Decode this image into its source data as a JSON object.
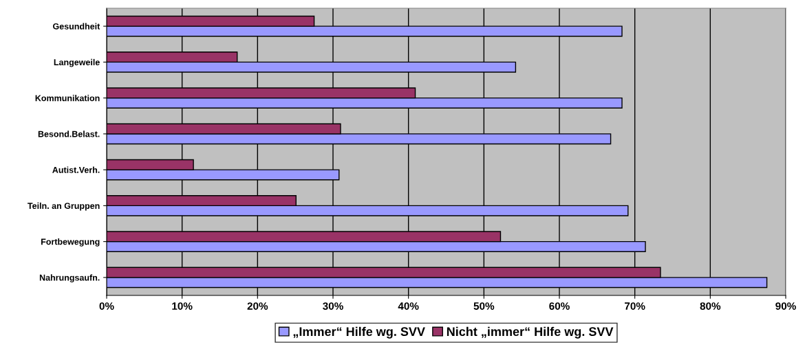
{
  "chart_data": {
    "type": "bar",
    "orientation": "horizontal",
    "categories": [
      "Gesundheit",
      "Langeweile",
      "Kommunikation",
      "Besond.Belast.",
      "Autist.Verh.",
      "Teiln. an Gruppen",
      "Fortbewegung",
      "Nahrungsaufn."
    ],
    "series": [
      {
        "name": "„Immer“ Hilfe wg. SVV",
        "color": "#9999ff",
        "values": [
          68.3,
          54.2,
          68.3,
          66.8,
          30.8,
          69.1,
          71.4,
          87.5
        ]
      },
      {
        "name": "Nicht „immer“ Hilfe wg. SVV",
        "color": "#993366",
        "values": [
          27.5,
          17.3,
          40.9,
          31.0,
          11.5,
          25.1,
          52.2,
          73.4
        ]
      }
    ],
    "xlim": [
      0,
      90
    ],
    "xticks": [
      {
        "value": 0,
        "label": "0%"
      },
      {
        "value": 10,
        "label": "10%"
      },
      {
        "value": 20,
        "label": "20%"
      },
      {
        "value": 30,
        "label": "30%"
      },
      {
        "value": 40,
        "label": "40%"
      },
      {
        "value": 50,
        "label": "50%"
      },
      {
        "value": 60,
        "label": "60%"
      },
      {
        "value": 70,
        "label": "70%"
      },
      {
        "value": 80,
        "label": "80%"
      },
      {
        "value": 90,
        "label": "90%"
      }
    ],
    "grid": "x",
    "legend": "bottom"
  }
}
